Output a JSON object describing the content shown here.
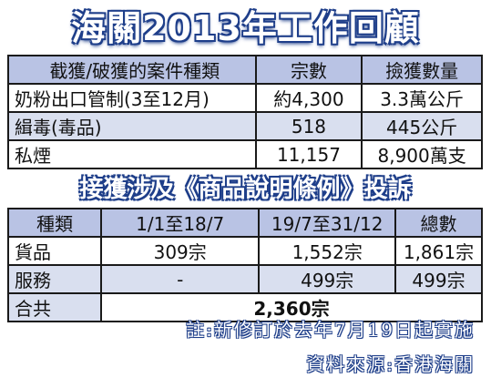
{
  "title": "海關2013年工作回顧",
  "table1": {
    "headers": [
      "截獲/破獲的案件種類",
      "宗數",
      "撿獲數量"
    ],
    "rows": [
      [
        "奶粉出口管制(3至12月)",
        "約4,300",
        "3.3萬公斤"
      ],
      [
        "緝毒(毒品)",
        "518",
        "445公斤"
      ],
      [
        "私煙",
        "11,157",
        "8,900萬支"
      ]
    ]
  },
  "subtitle": "接獲涉及《商品說明條例》投訴",
  "table2": {
    "headers": [
      "種類",
      "1/1至18/7",
      "19/7至31/12",
      "總數"
    ],
    "rows": [
      [
        "貨品",
        "309宗",
        "1,552宗",
        "1,861宗"
      ],
      [
        "服務",
        "-",
        "499宗",
        "499宗"
      ]
    ],
    "total_label": "合共",
    "total_value": "2,360宗"
  },
  "notes": {
    "note": "註:新修訂於去年7月19日起實施",
    "source": "資料來源:香港海關"
  },
  "colors": {
    "header_bg": "#b9c3e4",
    "stripe_bg": "#d9dfef",
    "title_outline": "#1f3f8a"
  }
}
